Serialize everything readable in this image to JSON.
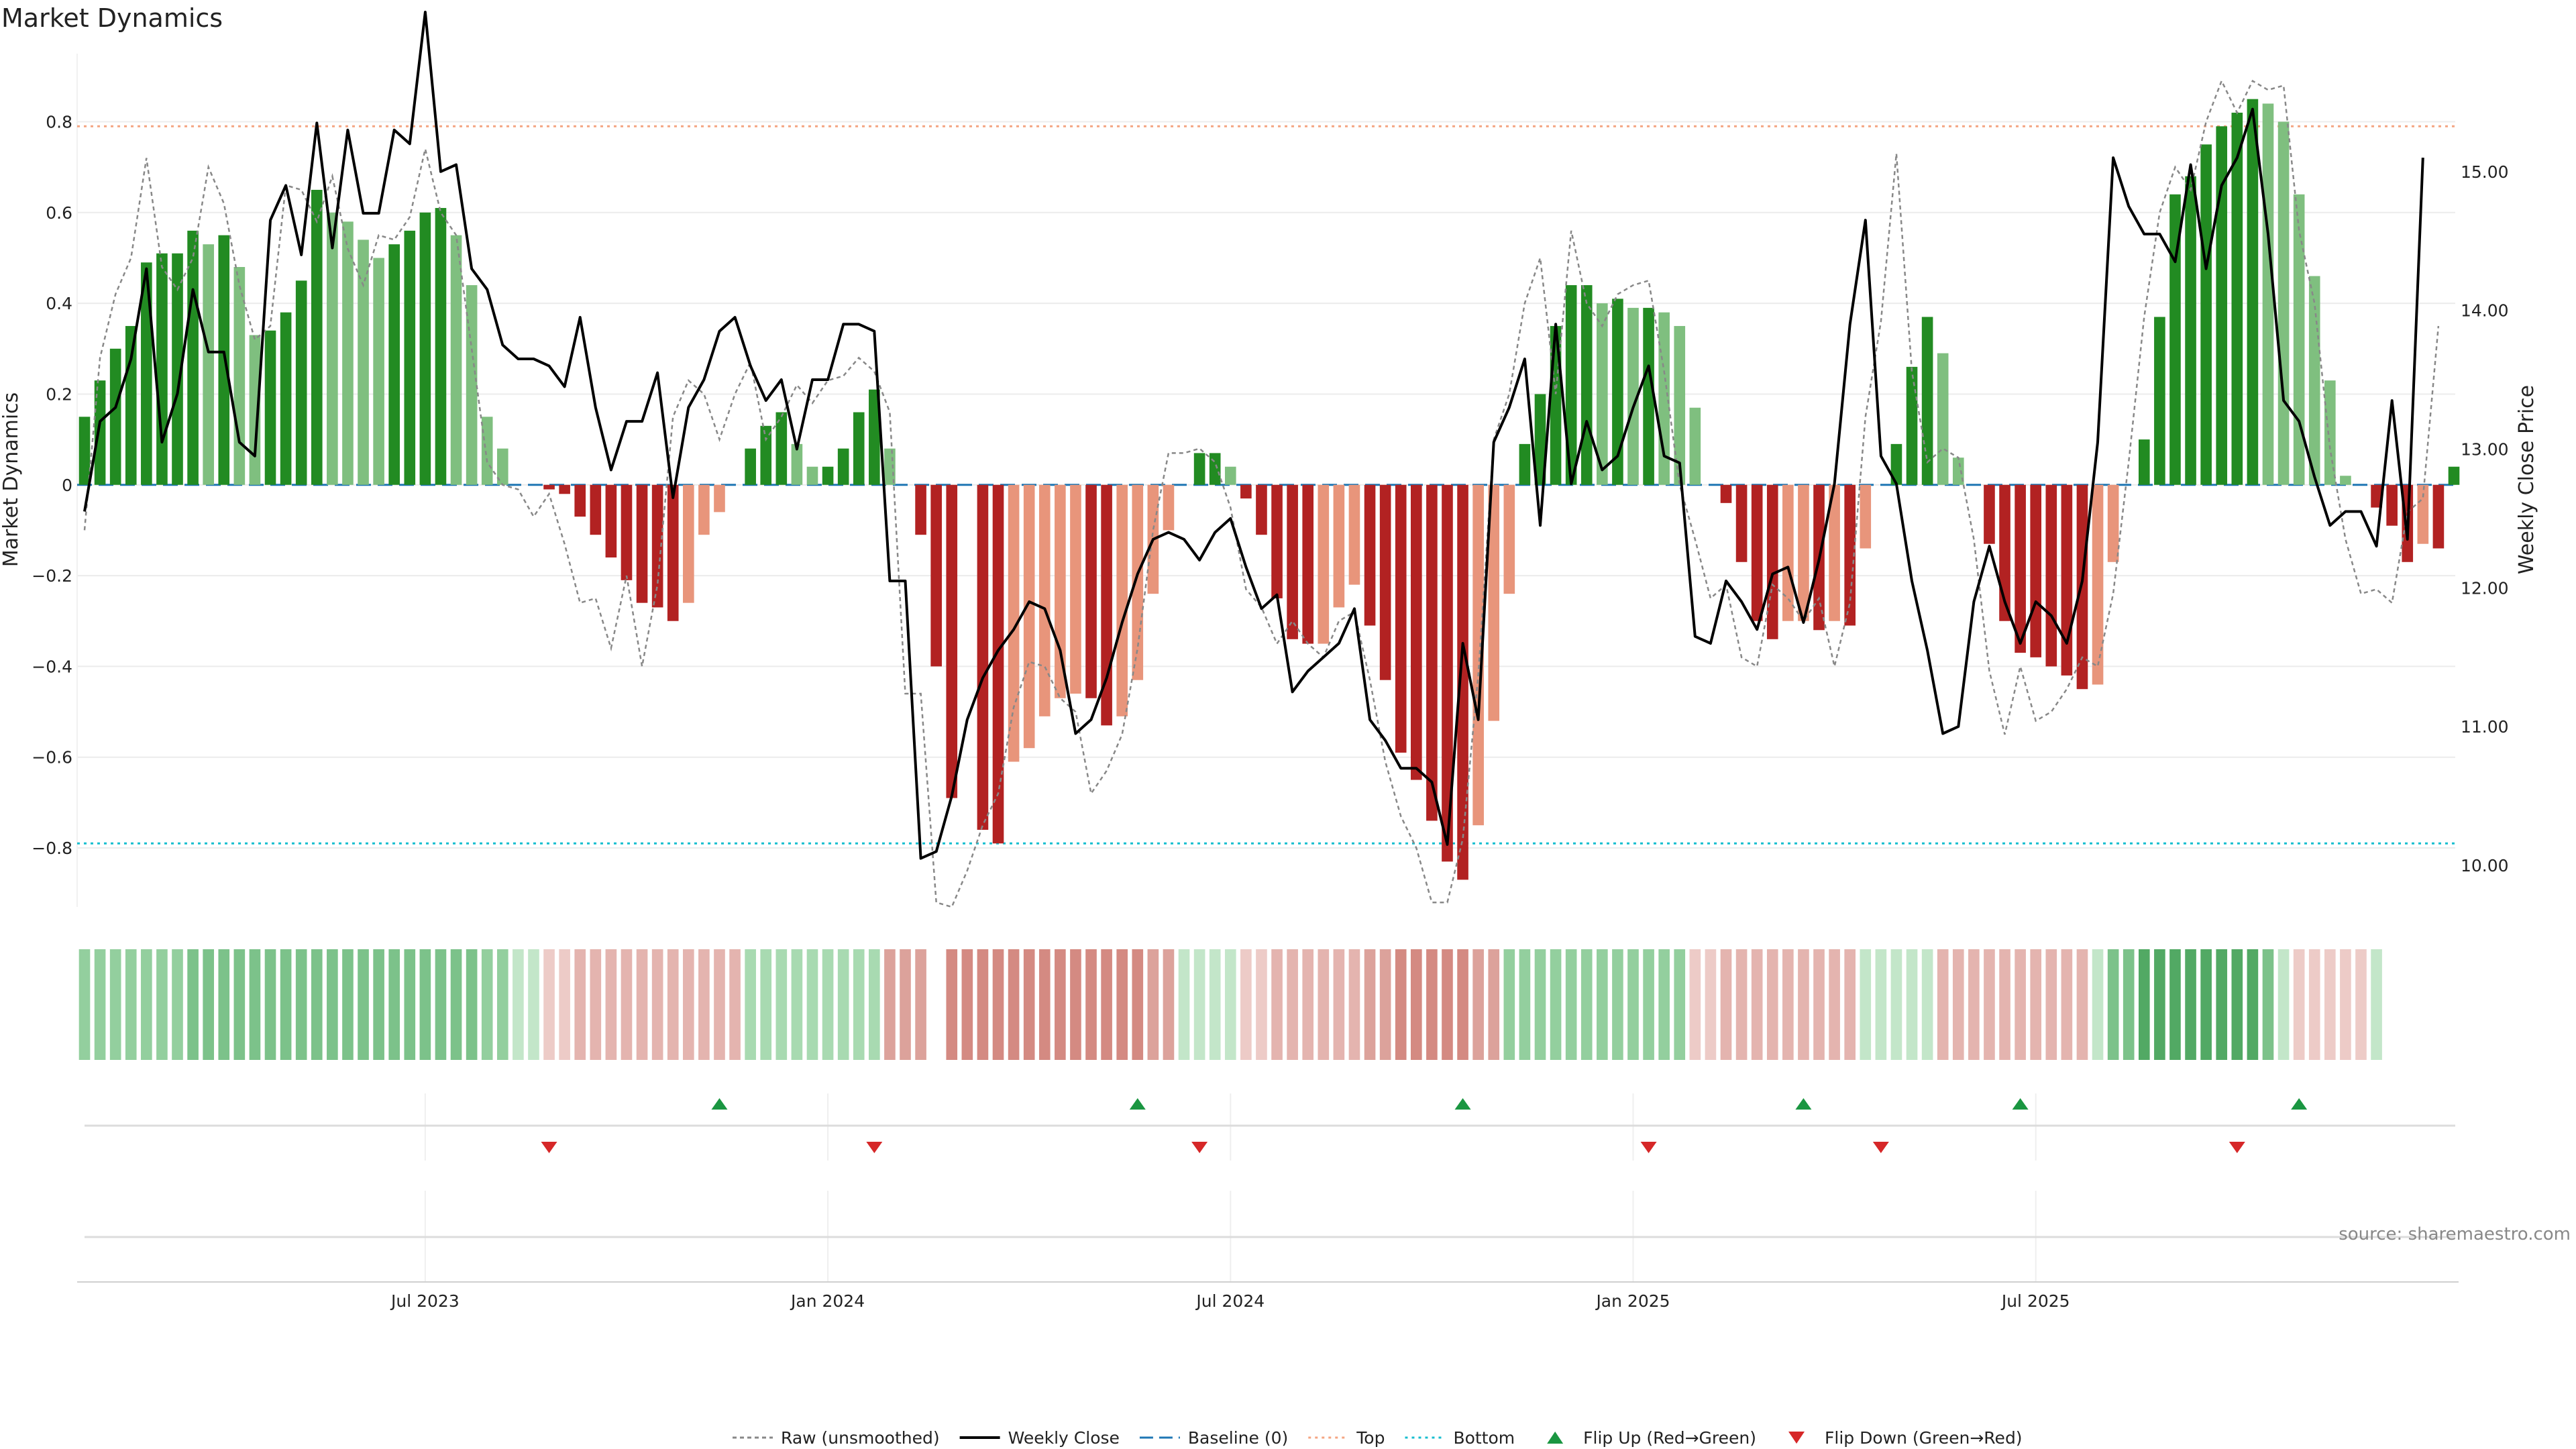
{
  "chart_data": {
    "type": "bar",
    "title": "Market Dynamics",
    "ylabel_left": "Market Dynamics",
    "ylabel_right": "Weekly Close Price",
    "source": "source: sharemaestro.com",
    "left_ylim": [
      -0.93,
      0.95
    ],
    "right_ylim": [
      9.7,
      15.85
    ],
    "left_ticks": [
      {
        "v": 0.8,
        "label": "0.8"
      },
      {
        "v": 0.6,
        "label": "0.6"
      },
      {
        "v": 0.4,
        "label": "0.4"
      },
      {
        "v": 0.2,
        "label": "0.2"
      },
      {
        "v": 0,
        "label": "0"
      },
      {
        "v": -0.2,
        "label": "−0.2"
      },
      {
        "v": -0.4,
        "label": "−0.4"
      },
      {
        "v": -0.6,
        "label": "−0.6"
      },
      {
        "v": -0.8,
        "label": "−0.8"
      }
    ],
    "right_ticks": [
      {
        "v": 15,
        "label": "15.00"
      },
      {
        "v": 14,
        "label": "14.00"
      },
      {
        "v": 13,
        "label": "13.00"
      },
      {
        "v": 12,
        "label": "12.00"
      },
      {
        "v": 11,
        "label": "11.00"
      },
      {
        "v": 10,
        "label": "10.00"
      }
    ],
    "x_ticks": [
      {
        "week": 22,
        "label": "Jul 2023"
      },
      {
        "week": 48,
        "label": "Jan 2024"
      },
      {
        "week": 74,
        "label": "Jul 2024"
      },
      {
        "week": 100,
        "label": "Jan 2025"
      },
      {
        "week": 126,
        "label": "Jul 2025"
      }
    ],
    "top_threshold": 0.79,
    "bottom_threshold": -0.79,
    "baseline": 0,
    "dynamics": [
      0.15,
      0.23,
      0.3,
      0.35,
      0.49,
      0.51,
      0.51,
      0.56,
      0.53,
      0.55,
      0.48,
      0.33,
      0.34,
      0.38,
      0.45,
      0.65,
      0.6,
      0.58,
      0.54,
      0.5,
      0.53,
      0.56,
      0.6,
      0.61,
      0.55,
      0.44,
      0.15,
      0.08,
      0,
      0,
      -0.01,
      -0.02,
      -0.07,
      -0.11,
      -0.16,
      -0.21,
      -0.26,
      -0.27,
      -0.3,
      -0.26,
      -0.11,
      -0.06,
      0,
      0.08,
      0.13,
      0.16,
      0.09,
      0.04,
      0.04,
      0.08,
      0.16,
      0.21,
      0.08,
      0,
      -0.11,
      -0.4,
      -0.69,
      0,
      -0.76,
      -0.79,
      -0.61,
      -0.58,
      -0.51,
      -0.47,
      -0.46,
      -0.47,
      -0.53,
      -0.51,
      -0.43,
      -0.24,
      -0.1,
      0,
      0.07,
      0.07,
      0.04,
      -0.03,
      -0.11,
      -0.25,
      -0.34,
      -0.35,
      -0.35,
      -0.27,
      -0.22,
      -0.31,
      -0.43,
      -0.59,
      -0.65,
      -0.74,
      -0.83,
      -0.87,
      -0.75,
      -0.52,
      -0.24,
      0.09,
      0.2,
      0.35,
      0.44,
      0.44,
      0.4,
      0.41,
      0.39,
      0.39,
      0.38,
      0.35,
      0.17,
      0,
      -0.04,
      -0.17,
      -0.3,
      -0.34,
      -0.3,
      -0.3,
      -0.32,
      -0.3,
      -0.31,
      -0.14,
      0,
      0.09,
      0.26,
      0.37,
      0.29,
      0.06,
      0,
      -0.13,
      -0.3,
      -0.37,
      -0.38,
      -0.4,
      -0.42,
      -0.45,
      -0.44,
      -0.17,
      0,
      0.1,
      0.37,
      0.64,
      0.68,
      0.75,
      0.79,
      0.82,
      0.85,
      0.84,
      0.8,
      0.64,
      0.46,
      0.23,
      0.02,
      0,
      -0.05,
      -0.09,
      -0.17,
      -0.13,
      -0.14,
      0.04
    ],
    "raw": [
      -0.1,
      0.28,
      0.42,
      0.5,
      0.72,
      0.48,
      0.43,
      0.5,
      0.7,
      0.62,
      0.44,
      0.32,
      0.35,
      0.66,
      0.65,
      0.58,
      0.68,
      0.52,
      0.44,
      0.55,
      0.54,
      0.59,
      0.74,
      0.6,
      0.55,
      0.3,
      0.05,
      0,
      -0.01,
      -0.07,
      -0.02,
      -0.13,
      -0.26,
      -0.25,
      -0.36,
      -0.2,
      -0.4,
      -0.22,
      0.15,
      0.23,
      0.2,
      0.1,
      0.2,
      0.27,
      0.1,
      0.15,
      0.22,
      0.18,
      0.23,
      0.24,
      0.28,
      0.25,
      0.16,
      -0.46,
      -0.46,
      -0.92,
      -0.93,
      -0.85,
      -0.75,
      -0.68,
      -0.49,
      -0.39,
      -0.4,
      -0.47,
      -0.5,
      -0.68,
      -0.63,
      -0.55,
      -0.36,
      -0.1,
      0.07,
      0.07,
      0.08,
      0.05,
      -0.05,
      -0.23,
      -0.27,
      -0.35,
      -0.3,
      -0.35,
      -0.38,
      -0.3,
      -0.28,
      -0.43,
      -0.61,
      -0.73,
      -0.8,
      -0.92,
      -0.92,
      -0.78,
      -0.42,
      0.1,
      0.2,
      0.4,
      0.5,
      0.2,
      0.56,
      0.4,
      0.35,
      0.42,
      0.44,
      0.45,
      0.25,
      0,
      -0.12,
      -0.25,
      -0.22,
      -0.38,
      -0.4,
      -0.22,
      -0.25,
      -0.3,
      -0.25,
      -0.4,
      -0.26,
      0.15,
      0.36,
      0.73,
      0.25,
      0.05,
      0.08,
      0.06,
      -0.12,
      -0.41,
      -0.55,
      -0.4,
      -0.52,
      -0.5,
      -0.45,
      -0.38,
      -0.4,
      -0.24,
      0.05,
      0.37,
      0.6,
      0.7,
      0.65,
      0.8,
      0.89,
      0.82,
      0.89,
      0.87,
      0.88,
      0.56,
      0.4,
      0.08,
      -0.12,
      -0.24,
      -0.23,
      -0.26,
      -0.06,
      -0.03,
      0.35
    ],
    "price": [
      12.55,
      13.2,
      13.3,
      13.65,
      14.3,
      13.05,
      13.4,
      14.15,
      13.7,
      13.7,
      13.05,
      12.95,
      14.65,
      14.9,
      14.4,
      15.35,
      14.45,
      15.3,
      14.7,
      14.7,
      15.3,
      15.2,
      16.15,
      15.0,
      15.05,
      14.3,
      14.15,
      13.75,
      13.65,
      13.65,
      13.6,
      13.45,
      13.95,
      13.3,
      12.85,
      13.2,
      13.2,
      13.55,
      12.65,
      13.3,
      13.5,
      13.85,
      13.95,
      13.6,
      13.35,
      13.5,
      13.0,
      13.5,
      13.5,
      13.9,
      13.9,
      13.85,
      12.05,
      12.05,
      10.05,
      10.1,
      10.5,
      11.05,
      11.35,
      11.55,
      11.7,
      11.9,
      11.85,
      11.55,
      10.95,
      11.05,
      11.35,
      11.75,
      12.1,
      12.35,
      12.4,
      12.35,
      12.2,
      12.4,
      12.5,
      12.15,
      11.85,
      11.95,
      11.25,
      11.4,
      11.5,
      11.6,
      11.85,
      11.05,
      10.9,
      10.7,
      10.7,
      10.6,
      10.15,
      11.6,
      11.05,
      13.05,
      13.3,
      13.65,
      12.45,
      13.9,
      12.75,
      13.2,
      12.85,
      12.95,
      13.3,
      13.6,
      12.95,
      12.9,
      11.65,
      11.6,
      12.05,
      11.9,
      11.7,
      12.1,
      12.15,
      11.75,
      12.2,
      12.75,
      13.9,
      14.65,
      12.95,
      12.75,
      12.05,
      11.55,
      10.95,
      11.0,
      11.9,
      12.3,
      11.9,
      11.6,
      11.9,
      11.8,
      11.6,
      12.05,
      13.05,
      15.1,
      14.75,
      14.55,
      14.55,
      14.35,
      15.05,
      14.3,
      14.9,
      15.1,
      15.45,
      14.55,
      13.35,
      13.2,
      12.8,
      12.45,
      12.55,
      12.55,
      12.3,
      13.35,
      12.35,
      15.1
    ],
    "heat_strip": {
      "colors": {
        "g1": "#c3e6c9",
        "g2": "#a8dab1",
        "g3": "#93cf9e",
        "g4": "#7cc28a",
        "g5": "#52a964",
        "r1": "#edcbc7",
        "r2": "#e4b4af",
        "r3": "#dca29b",
        "r4": "#d48a82",
        "r5": "#cc746c",
        "gap": "#ffffff"
      },
      "cells": [
        "g3",
        "g3",
        "g3",
        "g3",
        "g3",
        "g3",
        "g3",
        "g4",
        "g4",
        "g4",
        "g4",
        "g4",
        "g4",
        "g4",
        "g4",
        "g4",
        "g4",
        "g4",
        "g4",
        "g4",
        "g4",
        "g4",
        "g4",
        "g4",
        "g4",
        "g4",
        "g3",
        "g3",
        "g1",
        "g1",
        "r1",
        "r1",
        "r2",
        "r2",
        "r2",
        "r2",
        "r2",
        "r2",
        "r2",
        "r2",
        "r2",
        "r2",
        "r2",
        "g2",
        "g2",
        "g2",
        "g2",
        "g2",
        "g2",
        "g2",
        "g2",
        "g2",
        "r3",
        "r3",
        "r3",
        "gap",
        "r4",
        "r4",
        "r4",
        "r4",
        "r4",
        "r4",
        "r4",
        "r4",
        "r4",
        "r4",
        "r4",
        "r4",
        "r4",
        "r3",
        "r3",
        "g1",
        "g1",
        "g1",
        "g1",
        "r1",
        "r1",
        "r2",
        "r2",
        "r2",
        "r2",
        "r2",
        "r2",
        "r3",
        "r3",
        "r4",
        "r4",
        "r4",
        "r4",
        "r4",
        "r3",
        "r3",
        "g3",
        "g3",
        "g3",
        "g3",
        "g3",
        "g3",
        "g3",
        "g3",
        "g3",
        "g3",
        "g3",
        "g3",
        "r1",
        "r1",
        "r2",
        "r2",
        "r2",
        "r2",
        "r2",
        "r2",
        "r2",
        "r2",
        "r2",
        "g1",
        "g1",
        "g1",
        "g1",
        "g1",
        "r2",
        "r2",
        "r2",
        "r2",
        "r2",
        "r2",
        "r2",
        "r2",
        "r2",
        "r2",
        "g1",
        "g4",
        "g4",
        "g5",
        "g5",
        "g5",
        "g5",
        "g5",
        "g5",
        "g5",
        "g5",
        "g4",
        "g1",
        "r1",
        "r1",
        "r1",
        "r1",
        "r1",
        "g1"
      ]
    },
    "flips_up": [
      41,
      68,
      89,
      111,
      125,
      143
    ],
    "flips_down": [
      30,
      51,
      72,
      101,
      116,
      139
    ],
    "legend": [
      {
        "kind": "raw",
        "label": "Raw (unsmoothed)"
      },
      {
        "kind": "close",
        "label": "Weekly Close"
      },
      {
        "kind": "baseline",
        "label": "Baseline (0)"
      },
      {
        "kind": "top",
        "label": "Top"
      },
      {
        "kind": "bottom",
        "label": "Bottom"
      },
      {
        "kind": "flipup",
        "label": "Flip Up (Red→Green)"
      },
      {
        "kind": "flipdown",
        "label": "Flip Down (Green→Red)"
      }
    ],
    "colors": {
      "strong_green": "#228b22",
      "light_green": "#7fbf7f",
      "strong_red": "#b22222",
      "light_red": "#e8957b",
      "raw": "#888888",
      "close": "#000000",
      "baseline": "#1f77b4",
      "top": "#f4a582",
      "bottom": "#17becf",
      "flip_up": "#1a9641",
      "flip_down": "#d62728"
    }
  }
}
